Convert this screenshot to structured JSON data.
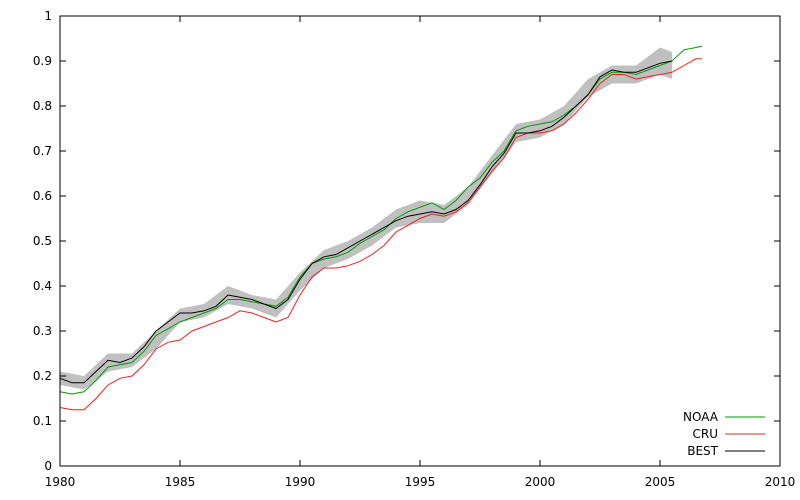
{
  "chart_data": {
    "type": "line",
    "xlim": [
      1980,
      2010
    ],
    "ylim": [
      0,
      1
    ],
    "x_ticks": [
      1980,
      1985,
      1990,
      1995,
      2000,
      2005,
      2010
    ],
    "y_ticks": [
      0,
      0.1,
      0.2,
      0.3,
      0.4,
      0.5,
      0.6,
      0.7,
      0.8,
      0.9,
      1
    ],
    "x_tick_labels": [
      "1980",
      "1985",
      "1990",
      "1995",
      "2000",
      "2005",
      "2010"
    ],
    "y_tick_labels": [
      "0",
      "0.1",
      "0.2",
      "0.3",
      "0.4",
      "0.5",
      "0.6",
      "0.7",
      "0.8",
      "0.9",
      "1"
    ],
    "grid": false,
    "legend_position": "bottom-right",
    "uncertainty_band": {
      "series": "BEST",
      "color": "#c0c0c0",
      "x": [
        1980.0,
        1981.0,
        1982.0,
        1983.0,
        1984.0,
        1985.0,
        1986.0,
        1987.0,
        1988.0,
        1989.0,
        1990.0,
        1991.0,
        1992.0,
        1993.0,
        1994.0,
        1995.0,
        1996.0,
        1997.0,
        1998.0,
        1999.0,
        2000.0,
        2001.0,
        2002.0,
        2003.0,
        2004.0,
        2005.0,
        2005.5
      ],
      "lower": [
        0.18,
        0.17,
        0.21,
        0.22,
        0.26,
        0.32,
        0.33,
        0.36,
        0.35,
        0.33,
        0.39,
        0.44,
        0.46,
        0.49,
        0.53,
        0.54,
        0.54,
        0.58,
        0.65,
        0.72,
        0.73,
        0.76,
        0.82,
        0.85,
        0.85,
        0.87,
        0.86
      ],
      "upper": [
        0.21,
        0.2,
        0.25,
        0.25,
        0.3,
        0.35,
        0.36,
        0.4,
        0.38,
        0.37,
        0.43,
        0.48,
        0.5,
        0.53,
        0.57,
        0.59,
        0.58,
        0.62,
        0.69,
        0.76,
        0.77,
        0.8,
        0.86,
        0.89,
        0.89,
        0.93,
        0.92
      ]
    },
    "series": [
      {
        "name": "NOAA",
        "color": "#009900",
        "x": [
          1980.0,
          1980.5,
          1981.0,
          1981.5,
          1982.0,
          1982.5,
          1983.0,
          1983.5,
          1984.0,
          1984.5,
          1985.0,
          1985.5,
          1986.0,
          1986.5,
          1987.0,
          1987.5,
          1988.0,
          1988.5,
          1989.0,
          1989.5,
          1990.0,
          1990.5,
          1991.0,
          1991.5,
          1992.0,
          1992.5,
          1993.0,
          1993.5,
          1994.0,
          1994.5,
          1995.0,
          1995.5,
          1996.0,
          1996.5,
          1997.0,
          1997.5,
          1998.0,
          1998.5,
          1999.0,
          1999.5,
          2000.0,
          2000.5,
          2001.0,
          2001.5,
          2002.0,
          2002.5,
          2003.0,
          2003.5,
          2004.0,
          2004.5,
          2005.0,
          2005.5,
          2006.0,
          2006.5,
          2006.75
        ],
        "y": [
          0.165,
          0.16,
          0.165,
          0.19,
          0.22,
          0.225,
          0.23,
          0.255,
          0.29,
          0.305,
          0.32,
          0.33,
          0.34,
          0.35,
          0.37,
          0.37,
          0.365,
          0.36,
          0.355,
          0.375,
          0.42,
          0.45,
          0.46,
          0.465,
          0.475,
          0.495,
          0.51,
          0.525,
          0.55,
          0.565,
          0.575,
          0.585,
          0.57,
          0.59,
          0.62,
          0.64,
          0.675,
          0.7,
          0.745,
          0.755,
          0.76,
          0.765,
          0.78,
          0.8,
          0.825,
          0.86,
          0.875,
          0.875,
          0.87,
          0.88,
          0.89,
          0.9,
          0.925,
          0.93,
          0.933
        ]
      },
      {
        "name": "CRU",
        "color": "#e8231e",
        "x": [
          1980.0,
          1980.5,
          1981.0,
          1981.5,
          1982.0,
          1982.5,
          1983.0,
          1983.5,
          1984.0,
          1984.5,
          1985.0,
          1985.5,
          1986.0,
          1986.5,
          1987.0,
          1987.5,
          1988.0,
          1988.5,
          1989.0,
          1989.5,
          1990.0,
          1990.5,
          1991.0,
          1991.5,
          1992.0,
          1992.5,
          1993.0,
          1993.5,
          1994.0,
          1994.5,
          1995.0,
          1995.5,
          1996.0,
          1996.5,
          1997.0,
          1997.5,
          1998.0,
          1998.5,
          1999.0,
          1999.5,
          2000.0,
          2000.5,
          2001.0,
          2001.5,
          2002.0,
          2002.5,
          2003.0,
          2003.5,
          2004.0,
          2004.5,
          2005.0,
          2005.5,
          2006.0,
          2006.5,
          2006.75
        ],
        "y": [
          0.13,
          0.125,
          0.125,
          0.15,
          0.18,
          0.195,
          0.2,
          0.225,
          0.26,
          0.275,
          0.28,
          0.3,
          0.31,
          0.32,
          0.33,
          0.345,
          0.34,
          0.33,
          0.32,
          0.33,
          0.38,
          0.42,
          0.44,
          0.44,
          0.445,
          0.455,
          0.47,
          0.49,
          0.52,
          0.535,
          0.55,
          0.56,
          0.555,
          0.565,
          0.585,
          0.62,
          0.655,
          0.685,
          0.73,
          0.74,
          0.74,
          0.745,
          0.76,
          0.785,
          0.815,
          0.85,
          0.87,
          0.87,
          0.86,
          0.865,
          0.87,
          0.875,
          0.89,
          0.905,
          0.905
        ]
      },
      {
        "name": "BEST",
        "color": "#000000",
        "x": [
          1980.0,
          1980.5,
          1981.0,
          1981.5,
          1982.0,
          1982.5,
          1983.0,
          1983.5,
          1984.0,
          1984.5,
          1985.0,
          1985.5,
          1986.0,
          1986.5,
          1987.0,
          1987.5,
          1988.0,
          1988.5,
          1989.0,
          1989.5,
          1990.0,
          1990.5,
          1991.0,
          1991.5,
          1992.0,
          1992.5,
          1993.0,
          1993.5,
          1994.0,
          1994.5,
          1995.0,
          1995.5,
          1996.0,
          1996.5,
          1997.0,
          1997.5,
          1998.0,
          1998.5,
          1999.0,
          1999.5,
          2000.0,
          2000.5,
          2001.0,
          2001.5,
          2002.0,
          2002.5,
          2003.0,
          2003.5,
          2004.0,
          2004.5,
          2005.0,
          2005.5
        ],
        "y": [
          0.195,
          0.185,
          0.185,
          0.21,
          0.235,
          0.23,
          0.24,
          0.265,
          0.3,
          0.32,
          0.34,
          0.34,
          0.345,
          0.355,
          0.38,
          0.375,
          0.37,
          0.36,
          0.35,
          0.37,
          0.415,
          0.45,
          0.465,
          0.47,
          0.485,
          0.5,
          0.515,
          0.53,
          0.545,
          0.555,
          0.56,
          0.565,
          0.56,
          0.57,
          0.59,
          0.625,
          0.665,
          0.695,
          0.74,
          0.74,
          0.745,
          0.755,
          0.775,
          0.8,
          0.825,
          0.865,
          0.88,
          0.875,
          0.875,
          0.885,
          0.895,
          0.9
        ]
      }
    ]
  }
}
